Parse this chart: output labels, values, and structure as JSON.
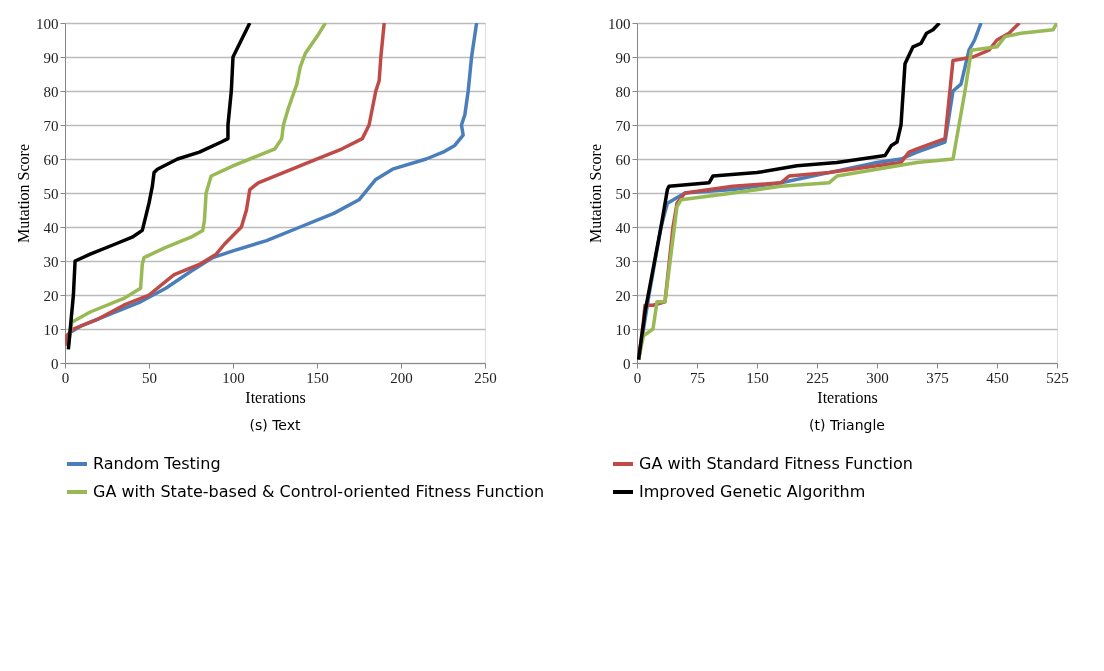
{
  "chart_data": [
    {
      "type": "line",
      "title": "(s) Text",
      "xlabel": "Iterations",
      "ylabel": "Mutation Score",
      "xlim": [
        0,
        250
      ],
      "xticks": [
        0,
        50,
        100,
        150,
        200,
        250
      ],
      "ylim": [
        0,
        100
      ],
      "yticks": [
        0,
        10,
        20,
        30,
        40,
        50,
        60,
        70,
        80,
        90,
        100
      ],
      "grid": "y",
      "legend": "bottom",
      "marker": "none",
      "line_style": "solid",
      "series": [
        {
          "name": "Random Testing",
          "color": "#4a7ebb",
          "x": [
            1,
            3,
            10,
            25,
            45,
            60,
            75,
            88,
            100,
            120,
            140,
            160,
            175,
            180,
            185,
            195,
            215,
            225,
            232,
            237,
            236,
            238,
            240,
            242,
            245
          ],
          "values": [
            5,
            9,
            11,
            14,
            18,
            22,
            27,
            31,
            33,
            36,
            40,
            44,
            48,
            51,
            54,
            57,
            60,
            62,
            64,
            67,
            70,
            73,
            80,
            90,
            100
          ]
        },
        {
          "name": "GA with Standard Fitness Function",
          "color": "#be4b48",
          "x": [
            1,
            1,
            5,
            20,
            35,
            50,
            60,
            65,
            80,
            90,
            95,
            105,
            108,
            110,
            115,
            130,
            145,
            165,
            177,
            181,
            185,
            187,
            188,
            190
          ],
          "values": [
            5,
            8,
            10,
            13,
            17,
            20,
            24,
            26,
            29,
            32,
            35,
            40,
            45,
            51,
            53,
            56,
            59,
            63,
            66,
            70,
            80,
            83,
            90,
            100
          ]
        },
        {
          "name": "GA with State-based & Control-oriented Fitness Function",
          "color": "#98b954",
          "x": [
            2,
            4,
            15,
            35,
            45,
            46,
            47,
            60,
            75,
            82,
            83,
            84,
            87,
            100,
            115,
            125,
            129,
            130,
            133,
            138,
            140,
            143,
            150,
            155
          ],
          "values": [
            5,
            12,
            15,
            19,
            22,
            29,
            31,
            34,
            37,
            39,
            42,
            50,
            55,
            58,
            61,
            63,
            66,
            70,
            75,
            82,
            87,
            91,
            96,
            100
          ]
        },
        {
          "name": "Improved Genetic Algorithm",
          "color": "#000000",
          "x": [
            2,
            5,
            6,
            15,
            30,
            40,
            46,
            48,
            50,
            52,
            53,
            55,
            67,
            80,
            93,
            97,
            97,
            99,
            100,
            103,
            110
          ],
          "values": [
            4,
            20,
            30,
            32,
            35,
            37,
            39,
            43,
            47,
            52,
            56,
            57,
            60,
            62,
            65,
            66,
            70,
            80,
            90,
            93,
            100
          ]
        }
      ]
    },
    {
      "type": "line",
      "title": "(t) Triangle",
      "xlabel": "Iterations",
      "ylabel": "Mutation Score",
      "xlim": [
        0,
        525
      ],
      "xticks": [
        0,
        75,
        150,
        225,
        300,
        375,
        450,
        525
      ],
      "ylim": [
        0,
        100
      ],
      "yticks": [
        0,
        10,
        20,
        30,
        40,
        50,
        60,
        70,
        80,
        90,
        100
      ],
      "grid": "y",
      "legend": "bottom",
      "marker": "none",
      "line_style": "solid",
      "series": [
        {
          "name": "Random Testing",
          "color": "#4a7ebb",
          "x": [
            2,
            15,
            30,
            38,
            60,
            120,
            180,
            240,
            300,
            330,
            350,
            385,
            395,
            405,
            415,
            422,
            430
          ],
          "values": [
            1,
            20,
            40,
            47,
            50,
            51,
            53,
            56,
            59,
            60,
            62,
            65,
            80,
            82,
            92,
            95,
            100
          ]
        },
        {
          "name": "GA with Standard Fitness Function",
          "color": "#be4b48",
          "x": [
            2,
            8,
            10,
            20,
            35,
            45,
            50,
            60,
            120,
            180,
            190,
            240,
            300,
            330,
            340,
            350,
            385,
            395,
            420,
            440,
            450,
            465,
            478
          ],
          "values": [
            1,
            12,
            17,
            17,
            18,
            40,
            47,
            50,
            52,
            53,
            55,
            56,
            58,
            59,
            62,
            63,
            66,
            89,
            90,
            92,
            95,
            97,
            100
          ]
        },
        {
          "name": "GA with State-based & Control-oriented Fitness Function",
          "color": "#98b954",
          "x": [
            2,
            8,
            20,
            25,
            35,
            50,
            55,
            120,
            180,
            240,
            250,
            300,
            350,
            395,
            410,
            418,
            450,
            460,
            480,
            520,
            525
          ],
          "values": [
            1,
            8,
            10,
            18,
            18,
            46,
            48,
            50,
            52,
            53,
            55,
            57,
            59,
            60,
            80,
            92,
            93,
            96,
            97,
            98,
            100
          ]
        },
        {
          "name": "Improved Genetic Algorithm",
          "color": "#000000",
          "x": [
            2,
            10,
            30,
            38,
            40,
            90,
            95,
            150,
            200,
            250,
            310,
            318,
            325,
            330,
            335,
            345,
            355,
            362,
            370,
            378
          ],
          "values": [
            1,
            15,
            40,
            51,
            52,
            53,
            55,
            56,
            58,
            59,
            61,
            64,
            65,
            70,
            88,
            93,
            94,
            97,
            98,
            100
          ]
        }
      ]
    }
  ]
}
